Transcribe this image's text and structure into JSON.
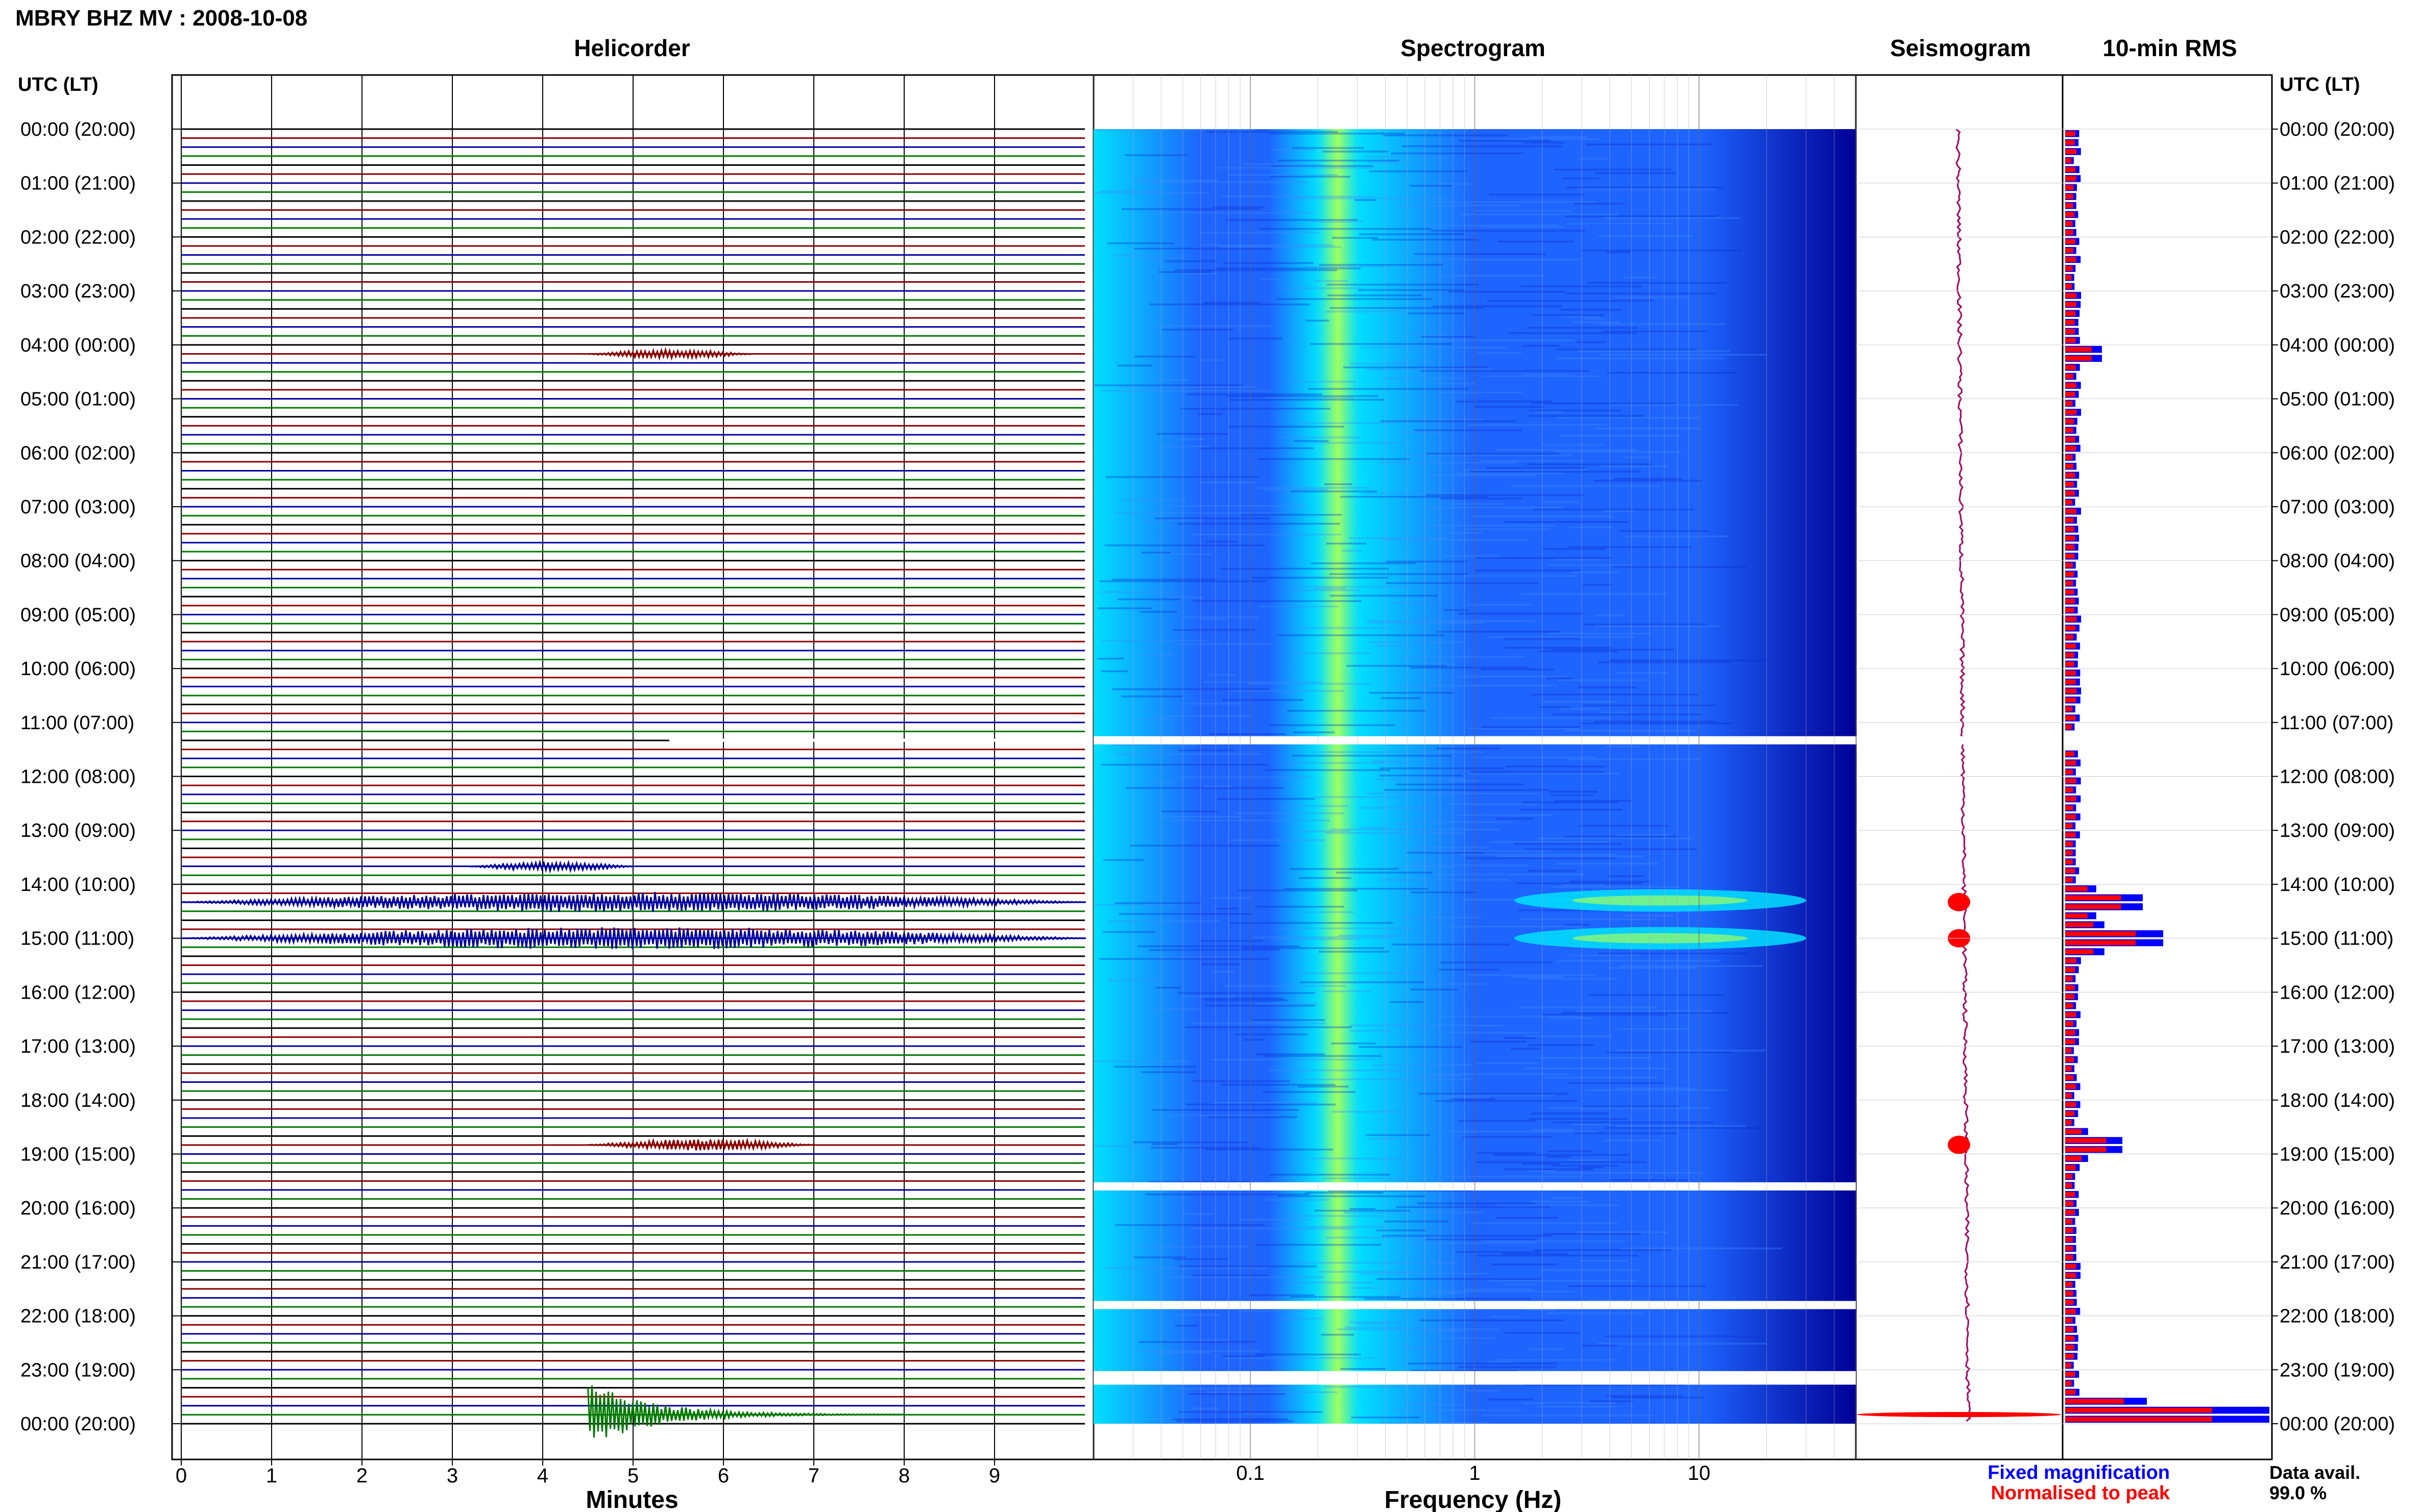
{
  "title": "MBRY BHZ MV : 2008-10-08",
  "panels": {
    "helicorder": "Helicorder",
    "spectrogram": "Spectrogram",
    "seismogram": "Seismogram",
    "rms": "10-min RMS"
  },
  "axis": {
    "left_header": "UTC (LT)",
    "right_header": "UTC (LT)",
    "helicorder_xlabel": "Minutes",
    "spectrogram_xlabel": "Frequency (Hz)"
  },
  "legend": {
    "fixed": "Fixed magnification",
    "normalised": "Normalised to peak",
    "data_avail_label": "Data avail.",
    "data_avail_value": "99.0 %"
  },
  "colors": {
    "trace_black": "#000000",
    "trace_red": "#8b0000",
    "trace_blue": "#0000a0",
    "trace_green": "#007800",
    "fixed_mag": "#0000ff",
    "normalised": "#ff0000",
    "spec_low": "#000096",
    "spec_mid": "#1e64ff",
    "spec_high": "#00e0ff",
    "spec_peak": "#a0ff60"
  },
  "chart_data": [
    {
      "type": "line",
      "name": "helicorder",
      "xlabel": "Minutes",
      "x_ticks": [
        "0",
        "1",
        "2",
        "3",
        "4",
        "5",
        "6",
        "7",
        "8",
        "9"
      ],
      "xlim": [
        0,
        10
      ],
      "y_ticks": [
        "00:00 (20:00)",
        "01:00 (21:00)",
        "02:00 (22:00)",
        "03:00 (23:00)",
        "04:00 (00:00)",
        "05:00 (01:00)",
        "06:00 (02:00)",
        "07:00 (03:00)",
        "08:00 (04:00)",
        "09:00 (05:00)",
        "10:00 (06:00)",
        "11:00 (07:00)",
        "12:00 (08:00)",
        "13:00 (09:00)",
        "14:00 (10:00)",
        "15:00 (11:00)",
        "16:00 (12:00)",
        "17:00 (13:00)",
        "18:00 (14:00)",
        "19:00 (15:00)",
        "20:00 (16:00)",
        "21:00 (17:00)",
        "22:00 (18:00)",
        "23:00 (19:00)",
        "00:00 (20:00)"
      ],
      "trace_colors_cycle": [
        "black",
        "red",
        "blue",
        "green"
      ],
      "lines_per_hour": 6,
      "events": [
        {
          "hour": 4.17,
          "minute_start": 4.5,
          "minute_end": 6.3,
          "amplitude": 0.4
        },
        {
          "hour": 13.67,
          "minute_start": 3.2,
          "minute_end": 5.0,
          "amplitude": 0.4
        },
        {
          "hour": 14.33,
          "minute_start": 0.0,
          "minute_end": 10.0,
          "amplitude": 0.9
        },
        {
          "hour": 15.0,
          "minute_start": 0.0,
          "minute_end": 10.0,
          "amplitude": 1.0
        },
        {
          "hour": 18.83,
          "minute_start": 4.5,
          "minute_end": 7.0,
          "amplitude": 0.5
        },
        {
          "hour": 23.83,
          "minute_start": 4.5,
          "minute_end": 8.0,
          "amplitude": 3.0
        }
      ],
      "gaps_hours": [
        11.33
      ]
    },
    {
      "type": "heatmap",
      "name": "spectrogram",
      "xlabel": "Frequency (Hz)",
      "x_scale": "log",
      "x_ticks": [
        "0.1",
        "1",
        "10"
      ],
      "xlim": [
        0.02,
        50
      ],
      "peak_band_hz": [
        0.2,
        0.3
      ],
      "energy_bursts": [
        {
          "hour": 14.3,
          "f_low": 1.5,
          "f_high": 30
        },
        {
          "hour": 15.0,
          "f_low": 1.5,
          "f_high": 30
        }
      ],
      "gaps_hours": [
        11.33,
        19.6,
        21.8,
        23.1,
        23.2
      ]
    },
    {
      "type": "line",
      "name": "seismogram",
      "bursts_hours": [
        14.33,
        15.0,
        18.83,
        23.83
      ]
    },
    {
      "type": "bar",
      "name": "10-min RMS",
      "series": [
        {
          "name": "Fixed magnification",
          "color": "#0000ff"
        },
        {
          "name": "Normalised to peak",
          "color": "#ff0000"
        }
      ],
      "peaks": [
        {
          "hour": 4.17,
          "value": 0.18
        },
        {
          "hour": 14.33,
          "value": 0.38
        },
        {
          "hour": 15.0,
          "value": 0.48
        },
        {
          "hour": 18.83,
          "value": 0.28
        },
        {
          "hour": 23.83,
          "value": 1.0
        }
      ],
      "baseline": 0.06
    }
  ]
}
